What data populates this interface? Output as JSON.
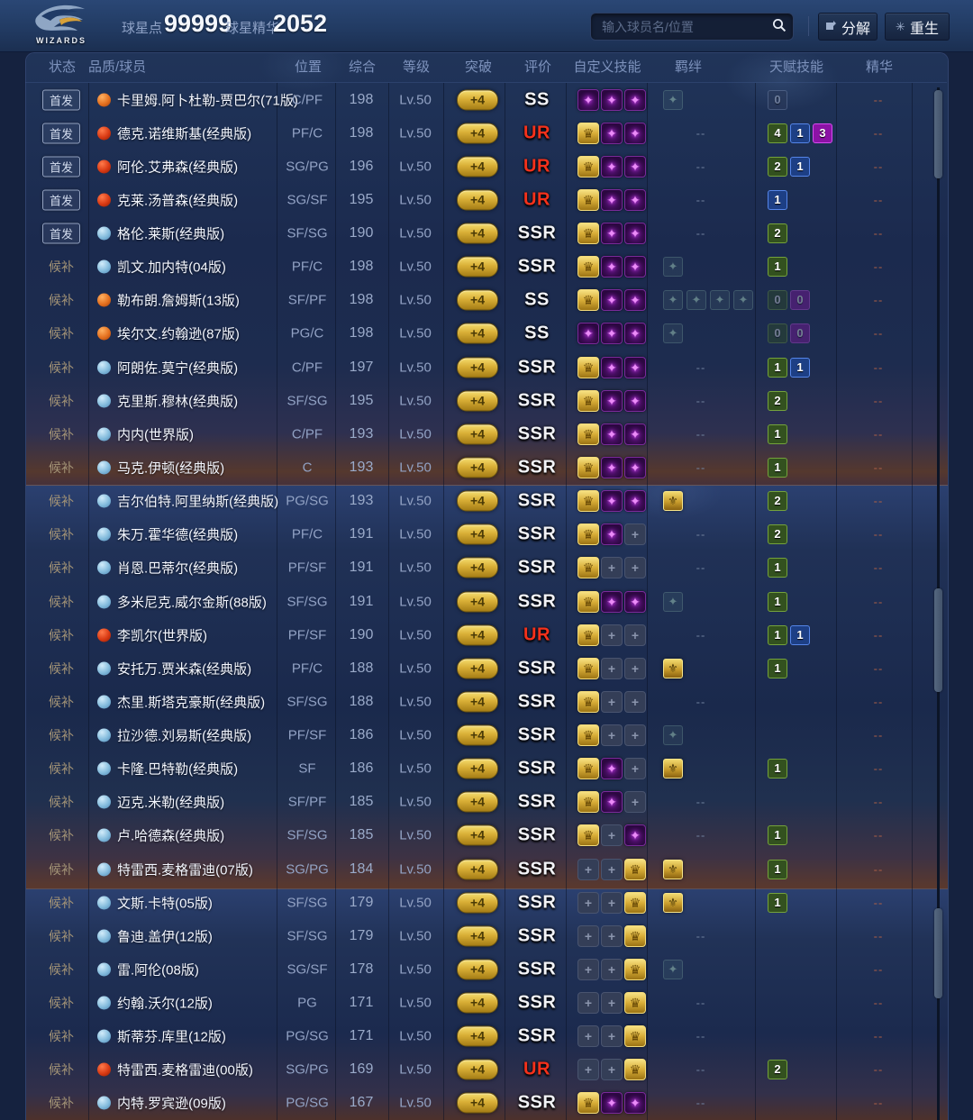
{
  "topbar": {
    "team": "WIZARDS",
    "star_points_label": "球星点",
    "star_points_value": "99999",
    "star_essence_label": "球星精华",
    "star_essence_value": "2052",
    "search_placeholder": "输入球员名/位置",
    "decompose_label": "分解",
    "rebirth_label": "重生"
  },
  "columns": [
    "状态",
    "品质/球员",
    "位置",
    "综合",
    "等级",
    "突破",
    "评价",
    "自定义技能",
    "羁绊",
    "天赋技能",
    "精华"
  ],
  "status_labels": {
    "starter": "首发",
    "substitute": "候补"
  },
  "colors": {
    "accent_gold": "#d9af36",
    "rating_ur": "#f5311b",
    "rating_ss": "#f2f3f7",
    "talent_green": "#33511f",
    "talent_blue": "#1d3f85",
    "talent_magenta": "#8c12a6",
    "dot_orange": "#e4701f",
    "dot_red": "#d93a14",
    "dot_blue": "#84bcdd"
  },
  "players": [
    {
      "status": "starter",
      "dot": "orange",
      "name": "卡里姆.阿卜杜勒-贾巴尔(71版)",
      "pos": "C/PF",
      "ovr": "198",
      "level": "Lv.50",
      "breakthrough": "+4",
      "rating": "SS",
      "skills": "ppp",
      "bonds": "faint1",
      "talents": [
        "0D"
      ],
      "essence": "--"
    },
    {
      "status": "starter",
      "dot": "red",
      "name": "德克.诺维斯基(经典版)",
      "pos": "PF/C",
      "ovr": "198",
      "level": "Lv.50",
      "breakthrough": "+4",
      "rating": "UR",
      "skills": "gpp",
      "bonds": "none",
      "talents": [
        "4g",
        "1b",
        "3m"
      ],
      "essence": "--"
    },
    {
      "status": "starter",
      "dot": "red",
      "name": "阿伦.艾弗森(经典版)",
      "pos": "SG/PG",
      "ovr": "196",
      "level": "Lv.50",
      "breakthrough": "+4",
      "rating": "UR",
      "skills": "gpp",
      "bonds": "none",
      "talents": [
        "2g",
        "1b"
      ],
      "essence": "--"
    },
    {
      "status": "starter",
      "dot": "red",
      "name": "克莱.汤普森(经典版)",
      "pos": "SG/SF",
      "ovr": "195",
      "level": "Lv.50",
      "breakthrough": "+4",
      "rating": "UR",
      "skills": "gpp",
      "bonds": "none",
      "talents": [
        "1b"
      ],
      "essence": "--"
    },
    {
      "status": "starter",
      "dot": "blue",
      "name": "格伦.莱斯(经典版)",
      "pos": "SF/SG",
      "ovr": "190",
      "level": "Lv.50",
      "breakthrough": "+4",
      "rating": "SSR",
      "skills": "gpp",
      "bonds": "none",
      "talents": [
        "2g"
      ],
      "essence": "--"
    },
    {
      "status": "substitute",
      "dot": "blue",
      "name": "凯文.加内特(04版)",
      "pos": "PF/C",
      "ovr": "198",
      "level": "Lv.50",
      "breakthrough": "+4",
      "rating": "SSR",
      "skills": "gpp",
      "bonds": "faint1",
      "talents": [
        "1g"
      ],
      "essence": "--"
    },
    {
      "status": "substitute",
      "dot": "orange",
      "name": "勒布朗.詹姆斯(13版)",
      "pos": "SF/PF",
      "ovr": "198",
      "level": "Lv.50",
      "breakthrough": "+4",
      "rating": "SS",
      "skills": "gpp",
      "bonds": "faint4",
      "talents": [
        "0G",
        "0M"
      ],
      "essence": "--"
    },
    {
      "status": "substitute",
      "dot": "orange",
      "name": "埃尔文.约翰逊(87版)",
      "pos": "PG/C",
      "ovr": "198",
      "level": "Lv.50",
      "breakthrough": "+4",
      "rating": "SS",
      "skills": "ppp",
      "bonds": "faint1",
      "talents": [
        "0G",
        "0M"
      ],
      "essence": "--"
    },
    {
      "status": "substitute",
      "dot": "blue",
      "name": "阿朗佐.莫宁(经典版)",
      "pos": "C/PF",
      "ovr": "197",
      "level": "Lv.50",
      "breakthrough": "+4",
      "rating": "SSR",
      "skills": "gpp",
      "bonds": "none",
      "talents": [
        "1g",
        "1b"
      ],
      "essence": "--"
    },
    {
      "status": "substitute",
      "dot": "blue",
      "name": "克里斯.穆林(经典版)",
      "pos": "SF/SG",
      "ovr": "195",
      "level": "Lv.50",
      "breakthrough": "+4",
      "rating": "SSR",
      "skills": "gpp",
      "bonds": "none",
      "talents": [
        "2g"
      ],
      "essence": "--"
    },
    {
      "status": "substitute",
      "dot": "blue",
      "name": "内内(世界版)",
      "pos": "C/PF",
      "ovr": "193",
      "level": "Lv.50",
      "breakthrough": "+4",
      "rating": "SSR",
      "skills": "gpp",
      "bonds": "none",
      "talents": [
        "1g"
      ],
      "essence": "--"
    },
    {
      "status": "substitute",
      "dot": "blue",
      "name": "马克.伊顿(经典版)",
      "pos": "C",
      "ovr": "193",
      "level": "Lv.50",
      "breakthrough": "+4",
      "rating": "SSR",
      "skills": "gpp",
      "bonds": "none",
      "talents": [
        "1g"
      ],
      "essence": "--"
    },
    {
      "status": "substitute",
      "dot": "blue",
      "name": "吉尔伯特.阿里纳斯(经典版)",
      "pos": "PG/SG",
      "ovr": "193",
      "level": "Lv.50",
      "breakthrough": "+4",
      "rating": "SSR",
      "skills": "gpp",
      "bonds": "gold1",
      "talents": [
        "2g"
      ],
      "essence": "--"
    },
    {
      "status": "substitute",
      "dot": "blue",
      "name": "朱万.霍华德(经典版)",
      "pos": "PF/C",
      "ovr": "191",
      "level": "Lv.50",
      "breakthrough": "+4",
      "rating": "SSR",
      "skills": "gpe",
      "bonds": "none",
      "talents": [
        "2g"
      ],
      "essence": "--"
    },
    {
      "status": "substitute",
      "dot": "blue",
      "name": "肖恩.巴蒂尔(经典版)",
      "pos": "PF/SF",
      "ovr": "191",
      "level": "Lv.50",
      "breakthrough": "+4",
      "rating": "SSR",
      "skills": "gee",
      "bonds": "none",
      "talents": [
        "1g"
      ],
      "essence": "--"
    },
    {
      "status": "substitute",
      "dot": "blue",
      "name": "多米尼克.威尔金斯(88版)",
      "pos": "SF/SG",
      "ovr": "191",
      "level": "Lv.50",
      "breakthrough": "+4",
      "rating": "SSR",
      "skills": "gpp",
      "bonds": "faint1",
      "talents": [
        "1g"
      ],
      "essence": "--"
    },
    {
      "status": "substitute",
      "dot": "red",
      "name": "李凯尔(世界版)",
      "pos": "PF/SF",
      "ovr": "190",
      "level": "Lv.50",
      "breakthrough": "+4",
      "rating": "UR",
      "skills": "gee",
      "bonds": "none",
      "talents": [
        "1g",
        "1b"
      ],
      "essence": "--"
    },
    {
      "status": "substitute",
      "dot": "blue",
      "name": "安托万.贾米森(经典版)",
      "pos": "PF/C",
      "ovr": "188",
      "level": "Lv.50",
      "breakthrough": "+4",
      "rating": "SSR",
      "skills": "gee",
      "bonds": "gold1",
      "talents": [
        "1g"
      ],
      "essence": "--"
    },
    {
      "status": "substitute",
      "dot": "blue",
      "name": "杰里.斯塔克豪斯(经典版)",
      "pos": "SF/SG",
      "ovr": "188",
      "level": "Lv.50",
      "breakthrough": "+4",
      "rating": "SSR",
      "skills": "gee",
      "bonds": "none",
      "talents": [],
      "essence": "--"
    },
    {
      "status": "substitute",
      "dot": "blue",
      "name": "拉沙德.刘易斯(经典版)",
      "pos": "PF/SF",
      "ovr": "186",
      "level": "Lv.50",
      "breakthrough": "+4",
      "rating": "SSR",
      "skills": "gee",
      "bonds": "faint1",
      "talents": [],
      "essence": "--"
    },
    {
      "status": "substitute",
      "dot": "blue",
      "name": "卡隆.巴特勒(经典版)",
      "pos": "SF",
      "ovr": "186",
      "level": "Lv.50",
      "breakthrough": "+4",
      "rating": "SSR",
      "skills": "gpe",
      "bonds": "gold1",
      "talents": [
        "1g"
      ],
      "essence": "--"
    },
    {
      "status": "substitute",
      "dot": "blue",
      "name": "迈克.米勒(经典版)",
      "pos": "SF/PF",
      "ovr": "185",
      "level": "Lv.50",
      "breakthrough": "+4",
      "rating": "SSR",
      "skills": "gpe",
      "bonds": "none",
      "talents": [],
      "essence": "--"
    },
    {
      "status": "substitute",
      "dot": "blue",
      "name": "卢.哈德森(经典版)",
      "pos": "SF/SG",
      "ovr": "185",
      "level": "Lv.50",
      "breakthrough": "+4",
      "rating": "SSR",
      "skills": "gep",
      "bonds": "none",
      "talents": [
        "1g"
      ],
      "essence": "--"
    },
    {
      "status": "substitute",
      "dot": "blue",
      "name": "特雷西.麦格雷迪(07版)",
      "pos": "SG/PG",
      "ovr": "184",
      "level": "Lv.50",
      "breakthrough": "+4",
      "rating": "SSR",
      "skills": "eeg",
      "bonds": "gold1",
      "talents": [
        "1g"
      ],
      "essence": "--"
    },
    {
      "status": "substitute",
      "dot": "blue",
      "name": "文斯.卡特(05版)",
      "pos": "SF/SG",
      "ovr": "179",
      "level": "Lv.50",
      "breakthrough": "+4",
      "rating": "SSR",
      "skills": "eeg",
      "bonds": "gold1",
      "talents": [
        "1g"
      ],
      "essence": "--"
    },
    {
      "status": "substitute",
      "dot": "blue",
      "name": "鲁迪.盖伊(12版)",
      "pos": "SF/SG",
      "ovr": "179",
      "level": "Lv.50",
      "breakthrough": "+4",
      "rating": "SSR",
      "skills": "eeg",
      "bonds": "none",
      "talents": [],
      "essence": "--"
    },
    {
      "status": "substitute",
      "dot": "blue",
      "name": "雷.阿伦(08版)",
      "pos": "SG/SF",
      "ovr": "178",
      "level": "Lv.50",
      "breakthrough": "+4",
      "rating": "SSR",
      "skills": "eeg",
      "bonds": "faint1",
      "talents": [],
      "essence": "--"
    },
    {
      "status": "substitute",
      "dot": "blue",
      "name": "约翰.沃尔(12版)",
      "pos": "PG",
      "ovr": "171",
      "level": "Lv.50",
      "breakthrough": "+4",
      "rating": "SSR",
      "skills": "eeg",
      "bonds": "none",
      "talents": [],
      "essence": "--"
    },
    {
      "status": "substitute",
      "dot": "blue",
      "name": "斯蒂芬.库里(12版)",
      "pos": "PG/SG",
      "ovr": "171",
      "level": "Lv.50",
      "breakthrough": "+4",
      "rating": "SSR",
      "skills": "eeg",
      "bonds": "none",
      "talents": [],
      "essence": "--"
    },
    {
      "status": "substitute",
      "dot": "red",
      "name": "特雷西.麦格雷迪(00版)",
      "pos": "SG/PG",
      "ovr": "169",
      "level": "Lv.50",
      "breakthrough": "+4",
      "rating": "UR",
      "skills": "eeg",
      "bonds": "none",
      "talents": [
        "2g"
      ],
      "essence": "--"
    },
    {
      "status": "substitute",
      "dot": "blue",
      "name": "内特.罗宾逊(09版)",
      "pos": "PG/SG",
      "ovr": "167",
      "level": "Lv.50",
      "breakthrough": "+4",
      "rating": "SSR",
      "skills": "gpp",
      "bonds": "none",
      "talents": [],
      "essence": "--"
    }
  ],
  "icons": {
    "search": "search-icon",
    "decompose": "fragment-icon",
    "rebirth": "burst-icon"
  },
  "glyphs": {
    "gold_skill": "♛",
    "purple_skill": "✦",
    "empty_skill": "+",
    "gold_bond": "⚜",
    "faint_bond": "✦",
    "rebirth": "✳",
    "dash": "--"
  }
}
